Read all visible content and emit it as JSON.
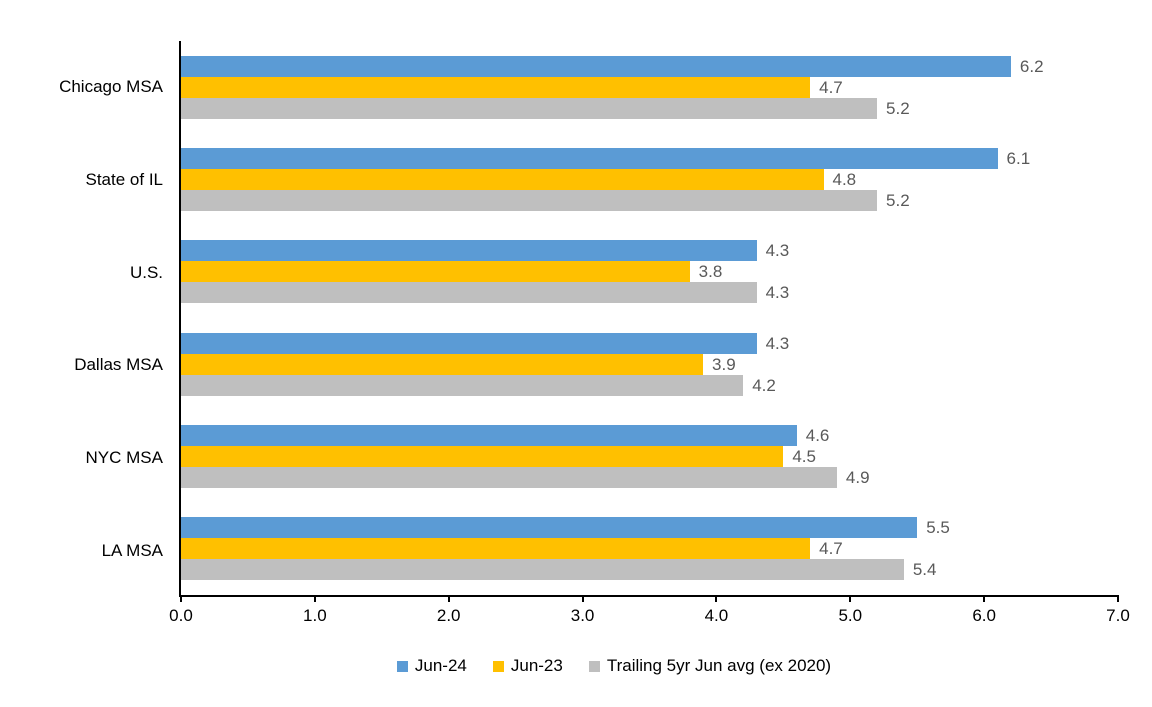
{
  "figure": {
    "background": "#FFFFFF"
  },
  "chart_data": {
    "type": "bar",
    "orientation": "horizontal",
    "title": "",
    "xlabel": "",
    "ylabel": "",
    "categories": [
      "Chicago MSA",
      "State of IL",
      "U.S.",
      "Dallas MSA",
      "NYC MSA",
      "LA MSA"
    ],
    "series": [
      {
        "name": "Jun-24",
        "color": "#5B9BD5",
        "values": [
          6.2,
          6.1,
          4.3,
          4.3,
          4.6,
          5.5
        ]
      },
      {
        "name": "Jun-23",
        "color": "#FFC000",
        "values": [
          4.7,
          4.8,
          3.8,
          3.9,
          4.5,
          4.7
        ]
      },
      {
        "name": "Trailing 5yr Jun avg (ex 2020)",
        "color": "#BFBFBF",
        "values": [
          5.2,
          5.2,
          4.3,
          4.2,
          4.9,
          5.4
        ]
      }
    ],
    "x_axis": {
      "min": 0,
      "max": 7,
      "tick_interval": 1,
      "tick_labels": [
        "0.0",
        "1.0",
        "2.0",
        "3.0",
        "4.0",
        "5.0",
        "6.0",
        "7.0"
      ]
    },
    "data_labels": true,
    "data_label_color": "#595959",
    "axis_color": "#000000",
    "grid": false,
    "legend_position": "bottom"
  }
}
